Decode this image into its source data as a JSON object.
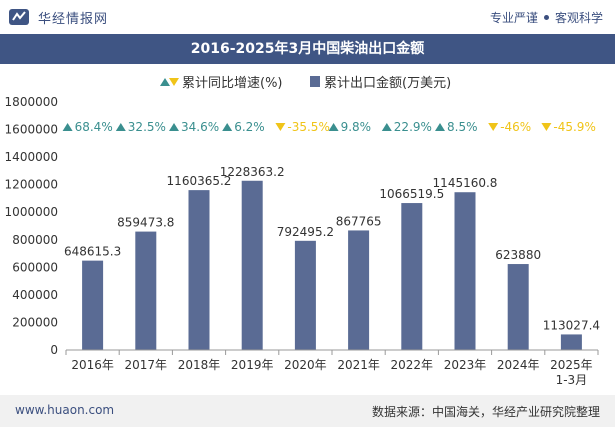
{
  "header": {
    "brand_name": "华经情报网",
    "slogan_left": "专业严谨",
    "slogan_right": "客观科学"
  },
  "footer": {
    "site": "www.huaon.com",
    "source": "数据来源：中国海关，华经产业研究院整理"
  },
  "colors": {
    "bar": "#5a6b94",
    "up": "#3a8f8f",
    "down": "#f0c419",
    "title_bg": "#3f5584"
  },
  "chart_data": {
    "type": "bar",
    "title": "2016-2025年3月中国柴油出口金额",
    "categories": [
      "2016年",
      "2017年",
      "2018年",
      "2019年",
      "2020年",
      "2021年",
      "2022年",
      "2023年",
      "2024年",
      "2025年\n1-3月"
    ],
    "series": [
      {
        "name": "累计出口金额(万美元)",
        "values": [
          648615.3,
          859473.8,
          1160365.2,
          1228363.2,
          792495.2,
          867765,
          1066519.5,
          1145160.8,
          623880,
          113027.4
        ],
        "labels": [
          "648615.3",
          "859473.8",
          "1160365.2",
          "1228363.2",
          "792495.2",
          "867765",
          "1066519.5",
          "1145160.8",
          "623880",
          "113027.4"
        ]
      },
      {
        "name": "累计同比增速(%)",
        "values": [
          68.4,
          32.5,
          34.6,
          6.2,
          -35.5,
          9.8,
          22.9,
          8.5,
          -46,
          -45.9
        ],
        "labels": [
          "68.4%",
          "32.5%",
          "34.6%",
          "6.2%",
          "-35.5%",
          "9.8%",
          "22.9%",
          "8.5%",
          "-46%",
          "-45.9%"
        ]
      }
    ],
    "ylim": [
      0,
      1800000
    ],
    "yticks": [
      "0",
      "200000",
      "400000",
      "600000",
      "800000",
      "1000000",
      "1200000",
      "1400000",
      "1600000",
      "1800000"
    ],
    "legend_position": "top",
    "grid": false
  }
}
